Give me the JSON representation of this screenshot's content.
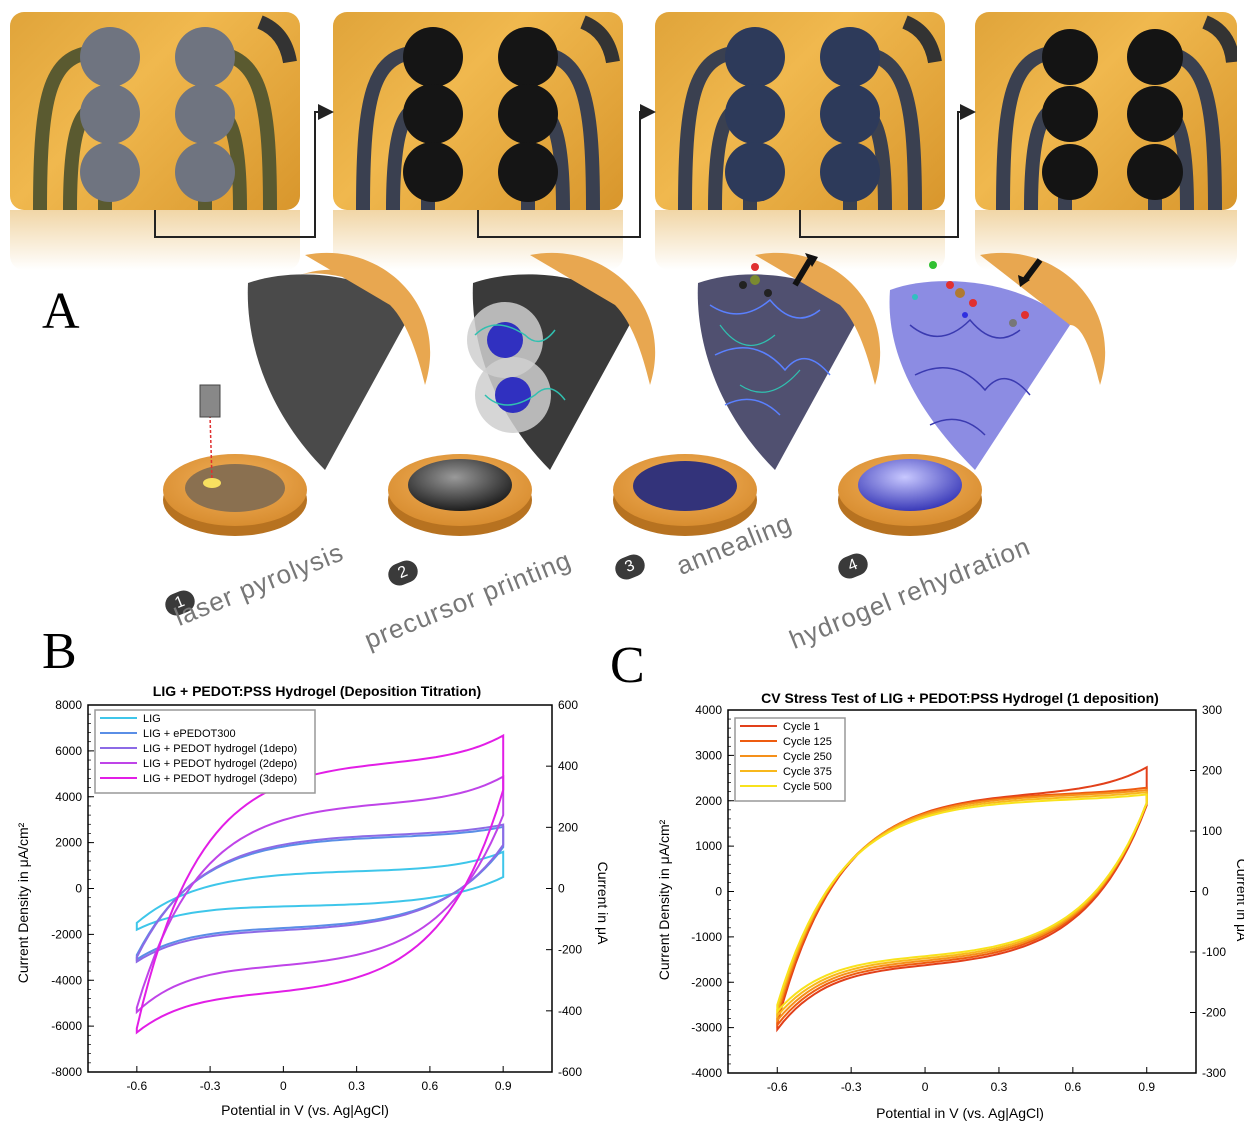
{
  "panels": {
    "a": "A",
    "b": "B",
    "c": "C"
  },
  "steps": [
    {
      "num": "1",
      "label": "laser pyrolysis"
    },
    {
      "num": "2",
      "label": "precursor printing"
    },
    {
      "num": "3",
      "label": "annealing"
    },
    {
      "num": "4",
      "label": "hydrogel rehydration"
    }
  ],
  "colors": {
    "substrate": "#e8a545",
    "lig": "#3b3b3b",
    "hydrogel": "#4a4ad0"
  },
  "chart_data": [
    {
      "type": "line",
      "title": "LIG + PEDOT:PSS Hydrogel (Deposition Titration)",
      "xlabel": "Potential in V (vs. Ag|AgCl)",
      "ylabel": "Current Density in μA/cm²",
      "y2label": "Current in μA",
      "xlim": [
        -0.8,
        1.1
      ],
      "ylim": [
        -8000,
        8000
      ],
      "y2lim": [
        -600,
        600
      ],
      "xticks": [
        "-0.6",
        "-0.3",
        "0",
        "0.3",
        "0.6",
        "0.9"
      ],
      "yticks": [
        "8000",
        "6000",
        "4000",
        "2000",
        "0",
        "-2000",
        "-4000",
        "-6000",
        "-8000"
      ],
      "y2ticks": [
        "600",
        "400",
        "200",
        "0",
        "-200",
        "-400",
        "-600"
      ],
      "legend_position": "top-left",
      "series": [
        {
          "name": "LIG",
          "color": "#3ec6ea",
          "v_min": -0.6,
          "v_max": 0.9,
          "upper_start": -1500,
          "upper_plateau": 800,
          "upper_end": 1600,
          "lower_end": 500,
          "lower_plateau": -800,
          "lower_start": -1800
        },
        {
          "name": "LIG + ePEDOT300",
          "color": "#5a8ee6",
          "v_min": -0.6,
          "v_max": 0.9,
          "upper_start": -2900,
          "upper_plateau": 2300,
          "upper_end": 2700,
          "lower_end": 1800,
          "lower_plateau": -1800,
          "lower_start": -3100
        },
        {
          "name": "LIG + PEDOT hydrogel (1depo)",
          "color": "#8c6ae6",
          "v_min": -0.6,
          "v_max": 0.9,
          "upper_start": -3000,
          "upper_plateau": 2400,
          "upper_end": 2800,
          "lower_end": 1900,
          "lower_plateau": -1900,
          "lower_start": -3200
        },
        {
          "name": "LIG + PEDOT hydrogel (2depo)",
          "color": "#bf44e8",
          "v_min": -0.6,
          "v_max": 0.9,
          "upper_start": -5200,
          "upper_plateau": 3800,
          "upper_end": 4900,
          "lower_end": 3200,
          "lower_plateau": -3500,
          "lower_start": -5400
        },
        {
          "name": "LIG + PEDOT hydrogel (3depo)",
          "color": "#e21ee6",
          "v_min": -0.6,
          "v_max": 0.9,
          "upper_start": -6100,
          "upper_plateau": 5600,
          "upper_end": 6700,
          "lower_end": 4300,
          "lower_plateau": -4700,
          "lower_start": -6300
        }
      ]
    },
    {
      "type": "line",
      "title": "CV Stress Test of LIG + PEDOT:PSS Hydrogel (1 deposition)",
      "xlabel": "Potential in V (vs. Ag|AgCl)",
      "ylabel": "Current Density in μA/cm²",
      "y2label": "Current in μA",
      "xlim": [
        -0.8,
        1.1
      ],
      "ylim": [
        -4000,
        4000
      ],
      "y2lim": [
        -300,
        300
      ],
      "xticks": [
        "-0.6",
        "-0.3",
        "0",
        "0.3",
        "0.6",
        "0.9"
      ],
      "yticks": [
        "4000",
        "3000",
        "2000",
        "1000",
        "0",
        "-1000",
        "-2000",
        "-3000",
        "-4000"
      ],
      "y2ticks": [
        "300",
        "200",
        "100",
        "0",
        "-100",
        "-200",
        "-300"
      ],
      "legend_position": "top-left",
      "series": [
        {
          "name": "Cycle 1",
          "color": "#e2401a",
          "v_min": -0.6,
          "v_max": 0.9,
          "upper_start": -2900,
          "upper_plateau": 2200,
          "upper_end": 2750,
          "lower_end": 1900,
          "lower_plateau": -1700,
          "lower_start": -3050
        },
        {
          "name": "Cycle 125",
          "color": "#ee5c10",
          "v_min": -0.6,
          "v_max": 0.9,
          "upper_start": -2800,
          "upper_plateau": 2180,
          "upper_end": 2300,
          "lower_end": 1950,
          "lower_plateau": -1650,
          "lower_start": -2950
        },
        {
          "name": "Cycle 250",
          "color": "#f5901a",
          "v_min": -0.6,
          "v_max": 0.9,
          "upper_start": -2700,
          "upper_plateau": 2150,
          "upper_end": 2250,
          "lower_end": 1950,
          "lower_plateau": -1600,
          "lower_start": -2850
        },
        {
          "name": "Cycle 375",
          "color": "#f8b81c",
          "v_min": -0.6,
          "v_max": 0.9,
          "upper_start": -2600,
          "upper_plateau": 2100,
          "upper_end": 2200,
          "lower_end": 1950,
          "lower_plateau": -1550,
          "lower_start": -2750
        },
        {
          "name": "Cycle 500",
          "color": "#f8e21c",
          "v_min": -0.6,
          "v_max": 0.9,
          "upper_start": -2500,
          "upper_plateau": 2050,
          "upper_end": 2150,
          "lower_end": 1950,
          "lower_plateau": -1500,
          "lower_start": -2650
        }
      ]
    }
  ]
}
